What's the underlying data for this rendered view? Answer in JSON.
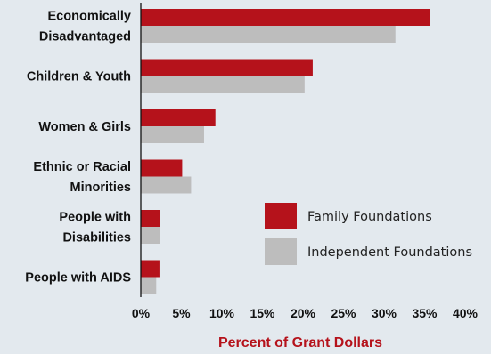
{
  "chart_data": {
    "type": "bar",
    "orientation": "horizontal",
    "categories": [
      [
        "Economically",
        "Disadvantaged"
      ],
      [
        "Children & Youth"
      ],
      [
        "Women & Girls"
      ],
      [
        "Ethnic or Racial",
        "Minorities"
      ],
      [
        "People with",
        "Disabilities"
      ],
      [
        "People with AIDS"
      ]
    ],
    "series": [
      {
        "name": "Family Foundations",
        "color": "#b5121b",
        "values": [
          35.7,
          21.2,
          9.2,
          5.1,
          2.4,
          2.3
        ]
      },
      {
        "name": "Independent Foundations",
        "color": "#bdbdbd",
        "values": [
          31.4,
          20.2,
          7.8,
          6.2,
          2.4,
          1.9
        ]
      }
    ],
    "xlabel": "Percent of Grant Dollars",
    "xlabel_color": "#b5121b",
    "xlim": [
      0,
      40
    ],
    "xticks": [
      "0%",
      "5%",
      "10%",
      "15%",
      "20%",
      "25%",
      "30%",
      "35%",
      "40%"
    ],
    "grid": false,
    "legend_position": "bottom-right"
  }
}
